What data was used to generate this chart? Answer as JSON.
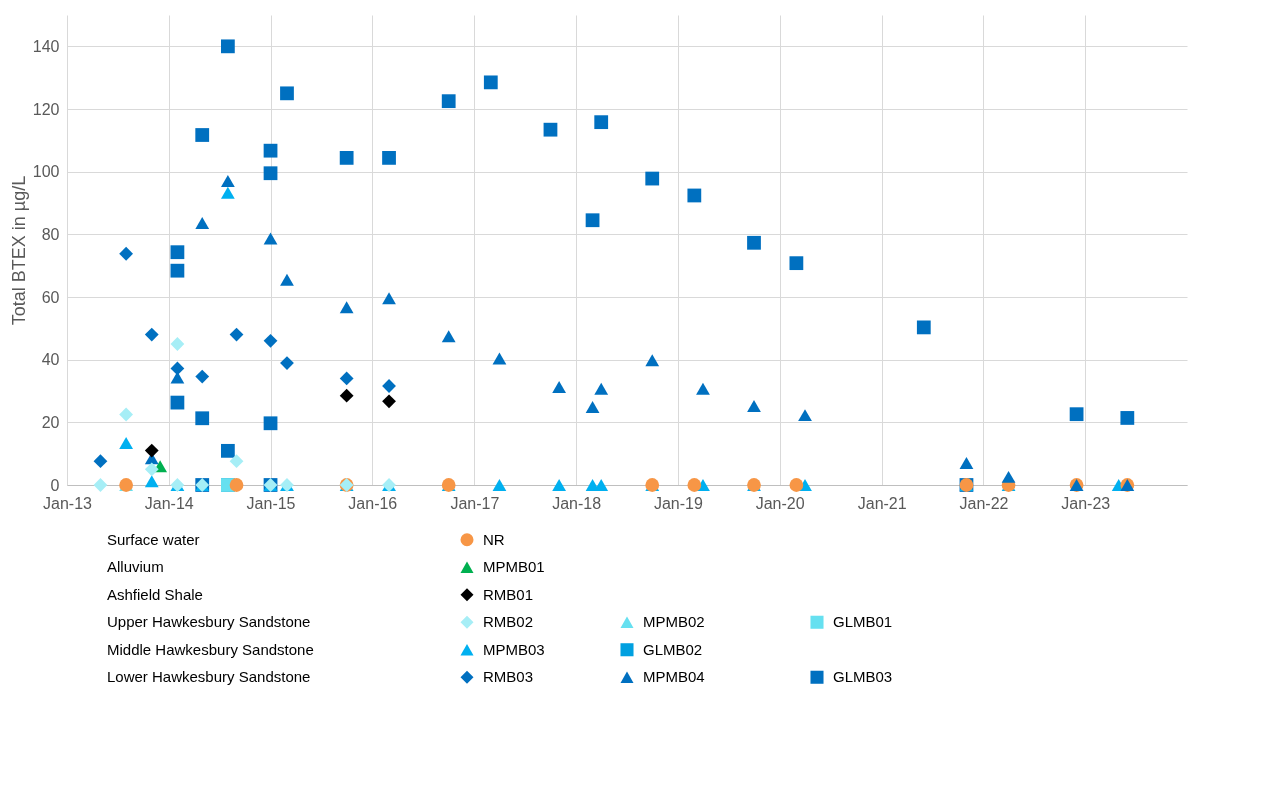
{
  "chart_data": {
    "type": "scatter",
    "ylabel": "Total BTEX in µg/L",
    "xlim": [
      "2013-01-01",
      "2024-01-01"
    ],
    "xticks": [
      {
        "value": "2013-01-01",
        "label": "Jan-13"
      },
      {
        "value": "2014-01-01",
        "label": "Jan-14"
      },
      {
        "value": "2015-01-01",
        "label": "Jan-15"
      },
      {
        "value": "2016-01-01",
        "label": "Jan-16"
      },
      {
        "value": "2017-01-01",
        "label": "Jan-17"
      },
      {
        "value": "2018-01-01",
        "label": "Jan-18"
      },
      {
        "value": "2019-01-01",
        "label": "Jan-19"
      },
      {
        "value": "2020-01-01",
        "label": "Jan-20"
      },
      {
        "value": "2021-01-01",
        "label": "Jan-21"
      },
      {
        "value": "2022-01-01",
        "label": "Jan-22"
      },
      {
        "value": "2023-01-01",
        "label": "Jan-23"
      }
    ],
    "ylim": [
      0,
      150
    ],
    "yticks": [
      0,
      20,
      40,
      60,
      80,
      100,
      120,
      140
    ],
    "grid": true,
    "legend": "bottom",
    "annotations": [
      "Surface water",
      "Alluvium",
      "Ashfield Shale",
      "Upper Hawkesbury Sandstone",
      "Middle Hawkesbury Sandstone",
      "Lower Hawkesbury Sandstone"
    ],
    "series": [
      {
        "name": "NR",
        "color": "#f79646",
        "marker": "circle",
        "x": [
          "2013-08",
          "2014-09",
          "2015-10",
          "2016-10",
          "2018-10",
          "2019-03",
          "2019-10",
          "2020-03",
          "2021-11",
          "2022-04",
          "2022-12",
          "2023-06"
        ],
        "values": [
          0,
          0,
          0,
          0,
          0,
          0,
          0,
          0,
          0,
          0,
          0,
          0
        ]
      },
      {
        "name": "MPMB01",
        "color": "#00b050",
        "marker": "triangle",
        "x": [
          "2013-12"
        ],
        "values": [
          6
        ]
      },
      {
        "name": "RMB01",
        "color": "#000000",
        "marker": "diamond",
        "x": [
          "2013-11",
          "2015-10",
          "2016-03"
        ],
        "values": [
          11,
          28.5,
          26.7
        ]
      },
      {
        "name": "RMB02",
        "color": "#a6eef6",
        "marker": "diamond",
        "x": [
          "2013-05",
          "2013-08",
          "2013-11",
          "2014-02",
          "2014-02",
          "2014-05",
          "2014-09",
          "2015-01",
          "2015-03",
          "2015-10",
          "2016-03"
        ],
        "values": [
          0,
          22.5,
          5,
          45,
          0,
          0,
          7.6,
          0,
          0,
          0,
          0
        ]
      },
      {
        "name": "MPMB02",
        "color": "#66e0f0",
        "marker": "triangle",
        "x": [
          "2013-08"
        ],
        "values": [
          0
        ]
      },
      {
        "name": "GLMB01",
        "color": "#66e0f0",
        "marker": "square",
        "x": [
          "2014-08"
        ],
        "values": [
          0
        ]
      },
      {
        "name": "MPMB03",
        "color": "#00b0f0",
        "marker": "triangle",
        "x": [
          "2013-08",
          "2013-11",
          "2014-02",
          "2014-05",
          "2014-08",
          "2015-01",
          "2015-03",
          "2015-10",
          "2016-03",
          "2016-10",
          "2017-04",
          "2017-11",
          "2018-03",
          "2018-04",
          "2018-10",
          "2019-04",
          "2019-10",
          "2020-04",
          "2021-11",
          "2022-04",
          "2023-05"
        ],
        "values": [
          13.4,
          1.2,
          0,
          0,
          93.3,
          0,
          0,
          0,
          0,
          0,
          0,
          0,
          0,
          0,
          0,
          0,
          0,
          0,
          0,
          0,
          0
        ]
      },
      {
        "name": "GLMB02",
        "color": "#00a0e0",
        "marker": "square"
      },
      {
        "name": "RMB03",
        "color": "#0070c0",
        "marker": "diamond",
        "x": [
          "2013-05",
          "2013-08",
          "2013-11",
          "2014-02",
          "2014-05",
          "2014-09",
          "2015-01",
          "2015-03",
          "2015-10",
          "2016-03"
        ],
        "values": [
          7.6,
          73.8,
          48,
          37.2,
          34.6,
          48,
          46,
          38.9,
          34,
          31.6
        ]
      },
      {
        "name": "MPMB04",
        "color": "#0070c0",
        "marker": "triangle",
        "x": [
          "2013-11",
          "2014-02",
          "2014-05",
          "2014-08",
          "2015-01",
          "2015-03",
          "2015-10",
          "2016-03",
          "2016-10",
          "2017-04",
          "2017-11",
          "2018-03",
          "2018-04",
          "2018-10",
          "2019-04",
          "2019-10",
          "2020-04",
          "2021-11",
          "2022-04",
          "2022-12",
          "2023-06"
        ],
        "values": [
          8.5,
          34.3,
          83.6,
          97,
          78.7,
          65.5,
          56.7,
          59.6,
          47.5,
          40.4,
          31.3,
          24.9,
          30.7,
          39.8,
          30.7,
          25.2,
          22.3,
          7,
          2.6,
          0,
          0
        ]
      },
      {
        "name": "GLMB03",
        "color": "#0070c0",
        "marker": "square",
        "x": [
          "2014-02",
          "2014-02",
          "2014-02",
          "2014-05",
          "2014-05",
          "2014-05",
          "2014-08",
          "2014-08",
          "2014-08",
          "2015-01",
          "2015-01",
          "2015-01",
          "2015-01",
          "2015-03",
          "2015-10",
          "2016-03",
          "2016-10",
          "2017-03",
          "2017-10",
          "2018-03",
          "2018-04",
          "2018-10",
          "2019-03",
          "2019-10",
          "2020-03",
          "2021-06",
          "2021-11",
          "2022-12",
          "2023-06"
        ],
        "values": [
          74.3,
          68.4,
          26.3,
          111.7,
          21.3,
          0,
          140,
          10.9,
          0,
          106.7,
          99.5,
          19.7,
          0,
          125,
          104.4,
          104.4,
          122.5,
          128.5,
          113.4,
          84.5,
          115.8,
          97.8,
          92.4,
          77.3,
          70.8,
          50.3,
          0,
          22.6,
          21.4
        ]
      }
    ]
  }
}
